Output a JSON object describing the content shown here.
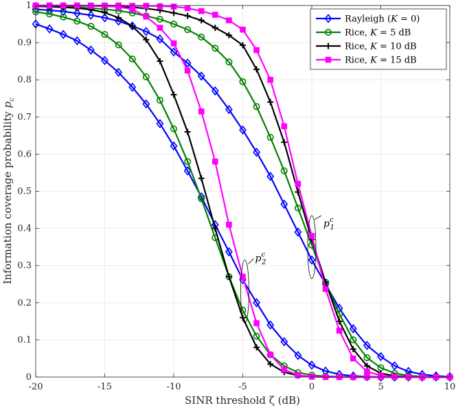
{
  "chart_data": {
    "type": "line",
    "xlabel": "SINR threshold ζ (dB)",
    "ylabel": "Information coverage probability p_c",
    "ylabel_main": "Information coverage probability ",
    "ylabel_symbol": "p",
    "ylabel_sub": "c",
    "xlim": [
      -20,
      10
    ],
    "ylim": [
      0,
      1
    ],
    "xticks": [
      -20,
      -15,
      -10,
      -5,
      0,
      5,
      10
    ],
    "xtick_labels": [
      "-20",
      "-15",
      "-10",
      "-5",
      "0",
      "5",
      "10"
    ],
    "yticks": [
      0,
      0.1,
      0.2,
      0.3,
      0.4,
      0.5,
      0.6,
      0.7,
      0.8,
      0.9,
      1
    ],
    "ytick_labels": [
      "0",
      "0.1",
      "0.2",
      "0.3",
      "0.4",
      "0.5",
      "0.6",
      "0.7",
      "0.8",
      "0.9",
      "1"
    ],
    "grid": true,
    "legend_position": "top-right",
    "x": [
      -20,
      -19,
      -18,
      -17,
      -16,
      -15,
      -14,
      -13,
      -12,
      -11,
      -10,
      -9,
      -8,
      -7,
      -6,
      -5,
      -4,
      -3,
      -2,
      -1,
      0,
      1,
      2,
      3,
      4,
      5,
      6,
      7,
      8,
      9,
      10
    ],
    "series": [
      {
        "name": "Rayleigh (K = 0)",
        "legend_label": "Rayleigh (K = 0)",
        "legend_main": "Rayleigh (",
        "legend_var": "K",
        "legend_rest": " = 0)",
        "color": "#0000FF",
        "marker": "diamond",
        "p1": [
          0.99,
          0.987,
          0.984,
          0.979,
          0.974,
          0.967,
          0.958,
          0.945,
          0.93,
          0.91,
          0.875,
          0.845,
          0.81,
          0.77,
          0.72,
          0.665,
          0.605,
          0.54,
          0.465,
          0.39,
          0.315,
          0.25,
          0.185,
          0.13,
          0.085,
          0.055,
          0.03,
          0.015,
          0.007,
          0.003,
          0.001
        ],
        "p2": [
          0.95,
          0.937,
          0.922,
          0.905,
          0.88,
          0.852,
          0.82,
          0.78,
          0.735,
          0.682,
          0.622,
          0.555,
          0.485,
          0.41,
          0.337,
          0.262,
          0.2,
          0.14,
          0.095,
          0.058,
          0.032,
          0.016,
          0.007,
          0.003,
          0.001,
          0.0,
          0.0,
          0.0,
          0.0,
          0.0,
          0.0
        ]
      },
      {
        "name": "Rice, K = 5 dB",
        "legend_label": "Rice, K = 5 dB",
        "legend_main": "Rice, ",
        "legend_var": "K",
        "legend_rest": " = 5 dB",
        "color": "#008000",
        "marker": "circle",
        "p1": [
          0.998,
          0.997,
          0.996,
          0.995,
          0.993,
          0.99,
          0.986,
          0.98,
          0.972,
          0.963,
          0.95,
          0.935,
          0.915,
          0.885,
          0.848,
          0.795,
          0.728,
          0.645,
          0.555,
          0.455,
          0.355,
          0.255,
          0.17,
          0.1,
          0.052,
          0.025,
          0.01,
          0.004,
          0.001,
          0.0,
          0.0
        ],
        "p2": [
          0.983,
          0.977,
          0.969,
          0.958,
          0.944,
          0.922,
          0.894,
          0.856,
          0.808,
          0.745,
          0.668,
          0.58,
          0.48,
          0.375,
          0.27,
          0.18,
          0.11,
          0.06,
          0.03,
          0.012,
          0.005,
          0.002,
          0.001,
          0.0,
          0.0,
          0.0,
          0.0,
          0.0,
          0.0,
          0.0,
          0.0
        ]
      },
      {
        "name": "Rice, K = 10 dB",
        "legend_label": "Rice, K = 10 dB",
        "legend_main": "Rice, ",
        "legend_var": "K",
        "legend_rest": " = 10 dB",
        "color": "#000000",
        "marker": "plus",
        "p1": [
          1.0,
          1.0,
          1.0,
          0.999,
          0.999,
          0.998,
          0.997,
          0.995,
          0.992,
          0.987,
          0.98,
          0.972,
          0.96,
          0.94,
          0.92,
          0.893,
          0.828,
          0.74,
          0.632,
          0.498,
          0.37,
          0.255,
          0.15,
          0.075,
          0.03,
          0.01,
          0.003,
          0.001,
          0.0,
          0.0,
          0.0
        ],
        "p2": [
          0.998,
          0.997,
          0.995,
          0.993,
          0.989,
          0.981,
          0.967,
          0.944,
          0.908,
          0.85,
          0.76,
          0.66,
          0.535,
          0.4,
          0.27,
          0.16,
          0.08,
          0.035,
          0.013,
          0.004,
          0.001,
          0.0,
          0.0,
          0.0,
          0.0,
          0.0,
          0.0,
          0.0,
          0.0,
          0.0,
          0.0
        ]
      },
      {
        "name": "Rice, K = 15 dB",
        "legend_label": "Rice, K = 15 dB",
        "legend_main": "Rice, ",
        "legend_var": "K",
        "legend_rest": " = 15 dB",
        "color": "#FF00FF",
        "marker": "square",
        "p1": [
          1.0,
          1.0,
          1.0,
          1.0,
          1.0,
          1.0,
          1.0,
          0.999,
          0.999,
          0.998,
          0.997,
          0.993,
          0.985,
          0.975,
          0.96,
          0.935,
          0.88,
          0.8,
          0.675,
          0.52,
          0.38,
          0.237,
          0.125,
          0.05,
          0.015,
          0.004,
          0.001,
          0.0,
          0.0,
          0.0,
          0.0
        ],
        "p2": [
          1.0,
          1.0,
          1.0,
          1.0,
          0.999,
          0.999,
          0.996,
          0.99,
          0.97,
          0.94,
          0.898,
          0.825,
          0.715,
          0.58,
          0.41,
          0.27,
          0.145,
          0.06,
          0.02,
          0.005,
          0.001,
          0.0,
          0.0,
          0.0,
          0.0,
          0.0,
          0.0,
          0.0,
          0.0,
          0.0,
          0.0
        ]
      }
    ],
    "annotations": [
      {
        "label": "p_1^c",
        "symbol": "p",
        "sub": "1",
        "sup": "c",
        "x": 0,
        "y": 0.32
      },
      {
        "label": "p_2^c",
        "symbol": "p",
        "sub": "2",
        "sup": "c",
        "x": -5,
        "y": 0.245
      }
    ]
  }
}
